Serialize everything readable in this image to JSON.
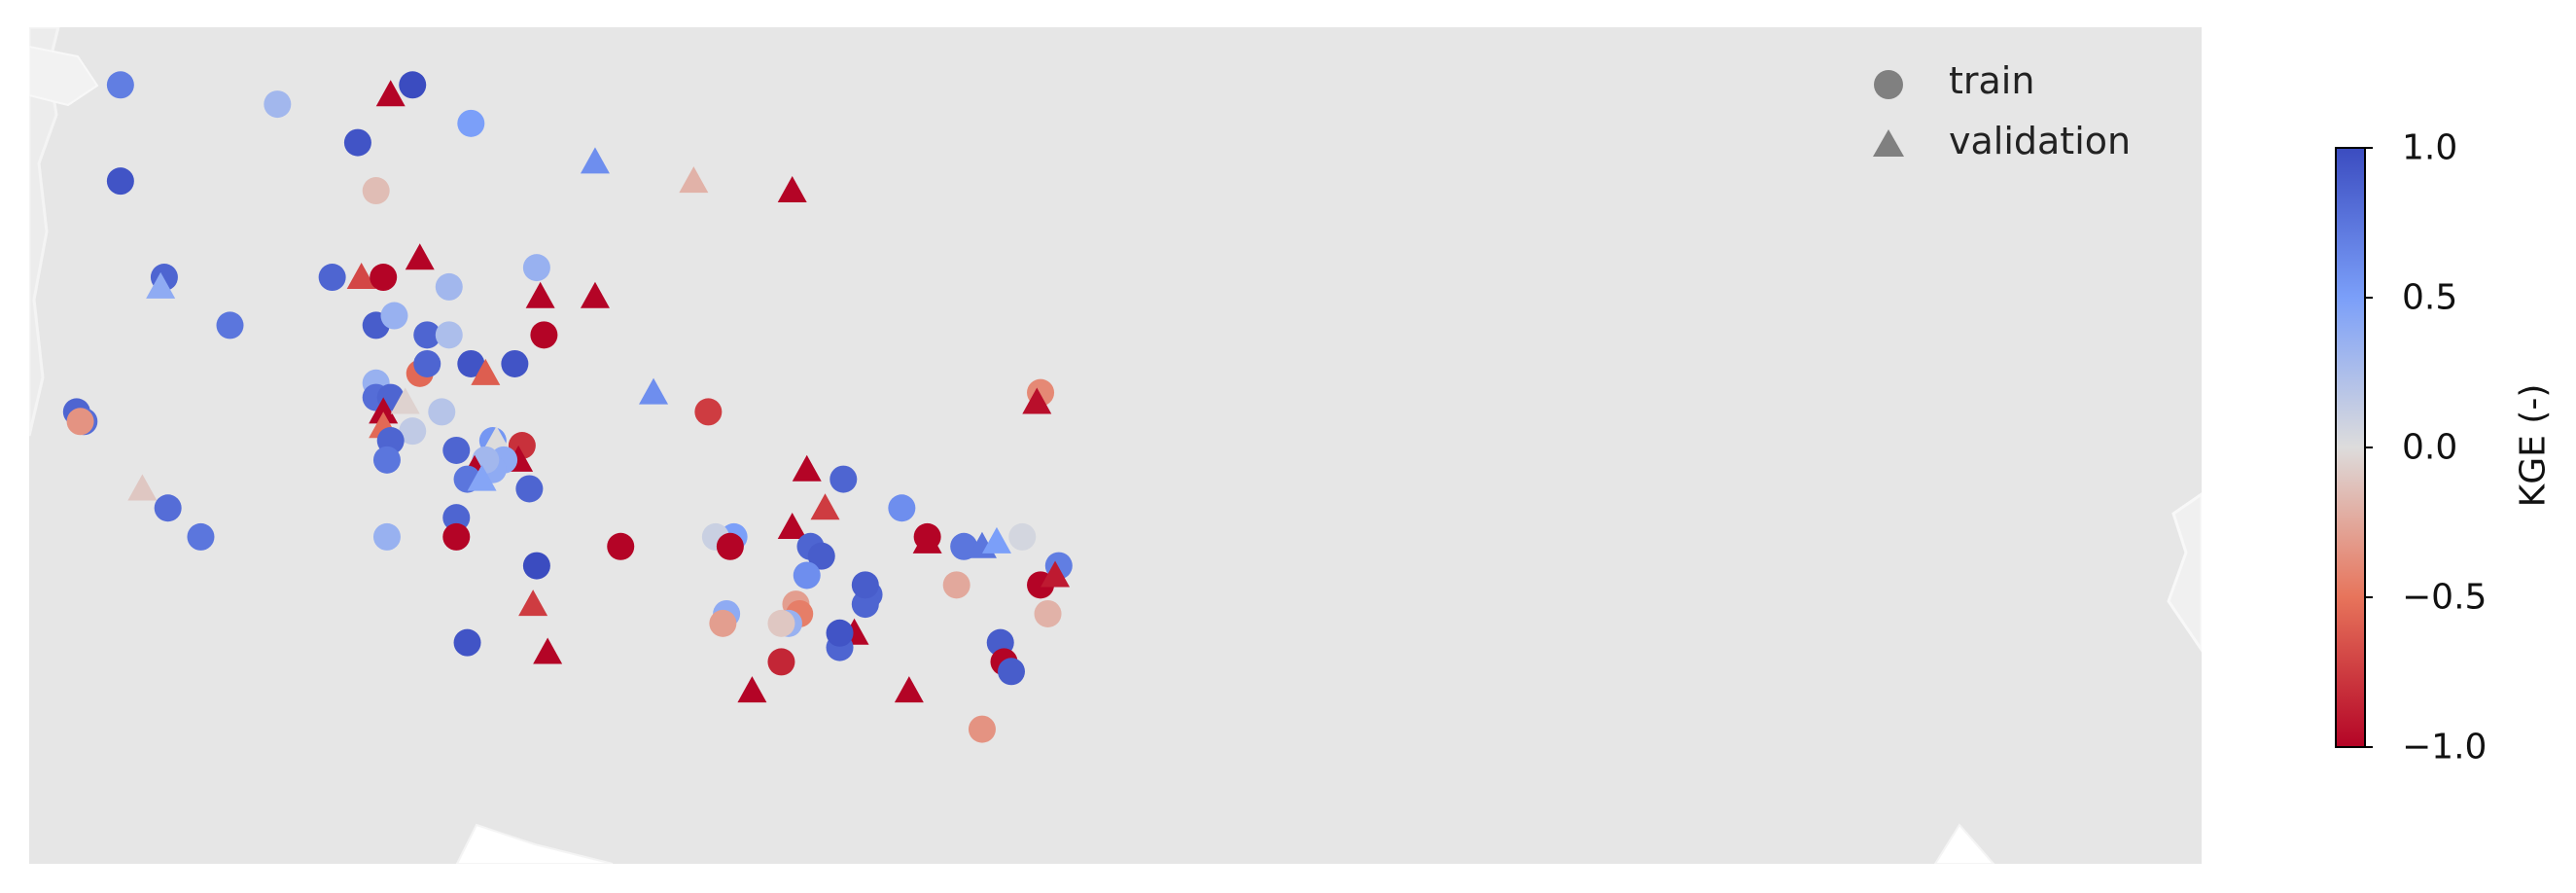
{
  "legend": {
    "train_label": "train",
    "validation_label": "validation",
    "marker_color": "#808080"
  },
  "colorbar": {
    "label": "KGE (-)",
    "min": -1.0,
    "max": 1.0,
    "ticks": [
      {
        "value": 1.0,
        "label": "1.0"
      },
      {
        "value": 0.5,
        "label": "0.5"
      },
      {
        "value": 0.0,
        "label": "0.0"
      },
      {
        "value": -0.5,
        "label": "−0.5"
      },
      {
        "value": -1.0,
        "label": "−1.0"
      }
    ],
    "colormap": "coolwarm_r",
    "stops": [
      "#b40426",
      "#e7745b",
      "#dddcdc",
      "#7b9ff9",
      "#3b4cc0"
    ]
  },
  "map": {
    "background_color": "#e6e6e6",
    "land_color": "#e6e6e6",
    "sites": [
      {
        "lon": -123.0,
        "lat": 48.6,
        "split": "train",
        "kge": 0.7
      },
      {
        "lon": -123.0,
        "lat": 47.6,
        "split": "train",
        "kge": 0.95
      },
      {
        "lon": -118.7,
        "lat": 48.4,
        "split": "train",
        "kge": 0.3
      },
      {
        "lon": -116.5,
        "lat": 48.0,
        "split": "train",
        "kge": 0.95
      },
      {
        "lon": -115.6,
        "lat": 48.5,
        "split": "validation",
        "kge": -1.0
      },
      {
        "lon": -115.0,
        "lat": 48.6,
        "split": "train",
        "kge": 1.0
      },
      {
        "lon": -113.4,
        "lat": 48.2,
        "split": "train",
        "kge": 0.5
      },
      {
        "lon": -110.0,
        "lat": 47.8,
        "split": "validation",
        "kge": 0.6
      },
      {
        "lon": -107.3,
        "lat": 47.6,
        "split": "validation",
        "kge": -0.2
      },
      {
        "lon": -104.6,
        "lat": 47.5,
        "split": "validation",
        "kge": -1.0
      },
      {
        "lon": -116.0,
        "lat": 47.5,
        "split": "train",
        "kge": -0.15
      },
      {
        "lon": -117.2,
        "lat": 46.6,
        "split": "train",
        "kge": 0.85
      },
      {
        "lon": -116.4,
        "lat": 46.6,
        "split": "validation",
        "kge": -0.7
      },
      {
        "lon": -115.8,
        "lat": 46.6,
        "split": "train",
        "kge": -1.0
      },
      {
        "lon": -114.8,
        "lat": 46.8,
        "split": "validation",
        "kge": -1.0
      },
      {
        "lon": -114.0,
        "lat": 46.5,
        "split": "train",
        "kge": 0.3
      },
      {
        "lon": -111.6,
        "lat": 46.7,
        "split": "train",
        "kge": 0.35
      },
      {
        "lon": -111.5,
        "lat": 46.4,
        "split": "validation",
        "kge": -1.0
      },
      {
        "lon": -110.0,
        "lat": 46.4,
        "split": "validation",
        "kge": -1.0
      },
      {
        "lon": -111.4,
        "lat": 46.0,
        "split": "train",
        "kge": -1.0
      },
      {
        "lon": -121.8,
        "lat": 46.6,
        "split": "train",
        "kge": 0.85
      },
      {
        "lon": -121.9,
        "lat": 46.5,
        "split": "validation",
        "kge": 0.4
      },
      {
        "lon": -120.0,
        "lat": 46.1,
        "split": "train",
        "kge": 0.75
      },
      {
        "lon": -116.0,
        "lat": 46.1,
        "split": "train",
        "kge": 0.9
      },
      {
        "lon": -115.5,
        "lat": 46.2,
        "split": "train",
        "kge": 0.35
      },
      {
        "lon": -114.6,
        "lat": 46.0,
        "split": "train",
        "kge": 0.85
      },
      {
        "lon": -114.0,
        "lat": 46.0,
        "split": "train",
        "kge": 0.25
      },
      {
        "lon": -114.8,
        "lat": 45.6,
        "split": "train",
        "kge": -0.55
      },
      {
        "lon": -114.6,
        "lat": 45.7,
        "split": "train",
        "kge": 0.85
      },
      {
        "lon": -113.4,
        "lat": 45.7,
        "split": "train",
        "kge": 0.95
      },
      {
        "lon": -113.0,
        "lat": 45.6,
        "split": "validation",
        "kge": -0.6
      },
      {
        "lon": -112.2,
        "lat": 45.7,
        "split": "train",
        "kge": 0.95
      },
      {
        "lon": -124.2,
        "lat": 45.2,
        "split": "train",
        "kge": 0.85
      },
      {
        "lon": -124.0,
        "lat": 45.1,
        "split": "train",
        "kge": 0.8
      },
      {
        "lon": -124.1,
        "lat": 45.1,
        "split": "train",
        "kge": -0.35
      },
      {
        "lon": -116.0,
        "lat": 45.5,
        "split": "train",
        "kge": 0.35
      },
      {
        "lon": -116.0,
        "lat": 45.35,
        "split": "train",
        "kge": 0.8
      },
      {
        "lon": -115.6,
        "lat": 45.35,
        "split": "train",
        "kge": 0.85
      },
      {
        "lon": -115.8,
        "lat": 45.2,
        "split": "validation",
        "kge": -1.0
      },
      {
        "lon": -115.2,
        "lat": 45.3,
        "split": "validation",
        "kge": -0.05
      },
      {
        "lon": -115.8,
        "lat": 45.05,
        "split": "validation",
        "kge": -0.55
      },
      {
        "lon": -115.0,
        "lat": 45.0,
        "split": "train",
        "kge": 0.15
      },
      {
        "lon": -114.2,
        "lat": 45.2,
        "split": "train",
        "kge": 0.2
      },
      {
        "lon": -115.6,
        "lat": 44.9,
        "split": "train",
        "kge": 0.85
      },
      {
        "lon": -115.7,
        "lat": 44.7,
        "split": "train",
        "kge": 0.75
      },
      {
        "lon": -112.8,
        "lat": 44.9,
        "split": "train",
        "kge": 0.55
      },
      {
        "lon": -112.7,
        "lat": 44.9,
        "split": "validation",
        "kge": 0.0
      },
      {
        "lon": -112.0,
        "lat": 44.85,
        "split": "train",
        "kge": -0.8
      },
      {
        "lon": -112.1,
        "lat": 44.7,
        "split": "validation",
        "kge": -1.0
      },
      {
        "lon": -112.5,
        "lat": 44.7,
        "split": "train",
        "kge": 0.4
      },
      {
        "lon": -112.8,
        "lat": 44.6,
        "split": "train",
        "kge": 0.4
      },
      {
        "lon": -113.0,
        "lat": 44.7,
        "split": "train",
        "kge": 0.3
      },
      {
        "lon": -113.8,
        "lat": 44.8,
        "split": "train",
        "kge": 0.85
      },
      {
        "lon": -113.3,
        "lat": 44.6,
        "split": "validation",
        "kge": -1.0
      },
      {
        "lon": -113.5,
        "lat": 44.5,
        "split": "train",
        "kge": 0.75
      },
      {
        "lon": -113.1,
        "lat": 44.5,
        "split": "validation",
        "kge": 0.45
      },
      {
        "lon": -111.8,
        "lat": 44.4,
        "split": "train",
        "kge": 0.85
      },
      {
        "lon": -113.8,
        "lat": 44.1,
        "split": "train",
        "kge": 0.85
      },
      {
        "lon": -113.8,
        "lat": 43.9,
        "split": "train",
        "kge": -1.0
      },
      {
        "lon": -115.7,
        "lat": 43.9,
        "split": "train",
        "kge": 0.35
      },
      {
        "lon": -122.4,
        "lat": 44.4,
        "split": "validation",
        "kge": -0.1
      },
      {
        "lon": -121.7,
        "lat": 44.2,
        "split": "train",
        "kge": 0.8
      },
      {
        "lon": -120.8,
        "lat": 43.9,
        "split": "train",
        "kge": 0.75
      },
      {
        "lon": -111.6,
        "lat": 43.6,
        "split": "train",
        "kge": 1.0
      },
      {
        "lon": -111.7,
        "lat": 43.2,
        "split": "validation",
        "kge": -0.75
      },
      {
        "lon": -113.5,
        "lat": 42.8,
        "split": "train",
        "kge": 0.95
      },
      {
        "lon": -111.3,
        "lat": 42.7,
        "split": "validation",
        "kge": -1.0
      },
      {
        "lon": -108.4,
        "lat": 45.4,
        "split": "validation",
        "kge": 0.6
      },
      {
        "lon": -106.9,
        "lat": 45.2,
        "split": "train",
        "kge": -0.75
      },
      {
        "lon": -109.3,
        "lat": 43.8,
        "split": "train",
        "kge": -1.0
      },
      {
        "lon": -104.2,
        "lat": 44.6,
        "split": "validation",
        "kge": -1.0
      },
      {
        "lon": -103.7,
        "lat": 44.2,
        "split": "validation",
        "kge": -0.75
      },
      {
        "lon": -103.2,
        "lat": 44.5,
        "split": "train",
        "kge": 0.85
      },
      {
        "lon": -104.6,
        "lat": 44.0,
        "split": "validation",
        "kge": -1.0
      },
      {
        "lon": -104.1,
        "lat": 43.8,
        "split": "train",
        "kge": 0.85
      },
      {
        "lon": -103.8,
        "lat": 43.7,
        "split": "train",
        "kge": 0.9
      },
      {
        "lon": -106.2,
        "lat": 43.9,
        "split": "train",
        "kge": 0.5
      },
      {
        "lon": -106.7,
        "lat": 43.9,
        "split": "train",
        "kge": 0.1
      },
      {
        "lon": -106.3,
        "lat": 43.8,
        "split": "train",
        "kge": -1.0
      },
      {
        "lon": -104.2,
        "lat": 43.5,
        "split": "train",
        "kge": 0.6
      },
      {
        "lon": -104.5,
        "lat": 43.2,
        "split": "train",
        "kge": -0.3
      },
      {
        "lon": -104.4,
        "lat": 43.1,
        "split": "train",
        "kge": -0.45
      },
      {
        "lon": -104.7,
        "lat": 43.0,
        "split": "train",
        "kge": 0.35
      },
      {
        "lon": -104.9,
        "lat": 43.0,
        "split": "train",
        "kge": -0.1
      },
      {
        "lon": -106.4,
        "lat": 43.1,
        "split": "train",
        "kge": 0.4
      },
      {
        "lon": -106.5,
        "lat": 43.0,
        "split": "train",
        "kge": -0.3
      },
      {
        "lon": -104.9,
        "lat": 42.6,
        "split": "train",
        "kge": -0.85
      },
      {
        "lon": -102.9,
        "lat": 42.9,
        "split": "validation",
        "kge": -1.0
      },
      {
        "lon": -102.5,
        "lat": 43.3,
        "split": "train",
        "kge": 0.85
      },
      {
        "lon": -102.6,
        "lat": 43.2,
        "split": "train",
        "kge": 0.85
      },
      {
        "lon": -102.6,
        "lat": 43.4,
        "split": "train",
        "kge": 0.9
      },
      {
        "lon": -101.6,
        "lat": 44.2,
        "split": "train",
        "kge": 0.6
      },
      {
        "lon": -100.9,
        "lat": 43.9,
        "split": "train",
        "kge": -1.0
      },
      {
        "lon": -100.9,
        "lat": 43.85,
        "split": "validation",
        "kge": -1.0
      },
      {
        "lon": -100.1,
        "lat": 43.4,
        "split": "train",
        "kge": -0.25
      },
      {
        "lon": -99.9,
        "lat": 43.8,
        "split": "train",
        "kge": 0.75
      },
      {
        "lon": -99.4,
        "lat": 43.8,
        "split": "validation",
        "kge": 0.75
      },
      {
        "lon": -99.0,
        "lat": 43.85,
        "split": "validation",
        "kge": 0.5
      },
      {
        "lon": -103.3,
        "lat": 42.75,
        "split": "train",
        "kge": 0.85
      },
      {
        "lon": -103.3,
        "lat": 42.9,
        "split": "train",
        "kge": 0.95
      },
      {
        "lon": -98.3,
        "lat": 43.9,
        "split": "train",
        "kge": 0.05
      },
      {
        "lon": -97.8,
        "lat": 45.4,
        "split": "train",
        "kge": -0.4
      },
      {
        "lon": -97.9,
        "lat": 45.3,
        "split": "validation",
        "kge": -0.95
      },
      {
        "lon": -97.8,
        "lat": 43.4,
        "split": "train",
        "kge": -1.0
      },
      {
        "lon": -98.9,
        "lat": 42.8,
        "split": "train",
        "kge": 0.9
      },
      {
        "lon": -98.8,
        "lat": 42.6,
        "split": "train",
        "kge": -1.0
      },
      {
        "lon": -98.6,
        "lat": 42.5,
        "split": "train",
        "kge": 0.9
      },
      {
        "lon": -97.3,
        "lat": 43.6,
        "split": "train",
        "kge": 0.7
      },
      {
        "lon": -97.4,
        "lat": 43.5,
        "split": "validation",
        "kge": -0.9
      },
      {
        "lon": -97.6,
        "lat": 43.1,
        "split": "train",
        "kge": -0.2
      },
      {
        "lon": -99.4,
        "lat": 41.9,
        "split": "train",
        "kge": -0.35
      },
      {
        "lon": -105.7,
        "lat": 42.3,
        "split": "validation",
        "kge": -1.0
      },
      {
        "lon": -101.4,
        "lat": 42.3,
        "split": "validation",
        "kge": -1.0
      }
    ]
  }
}
